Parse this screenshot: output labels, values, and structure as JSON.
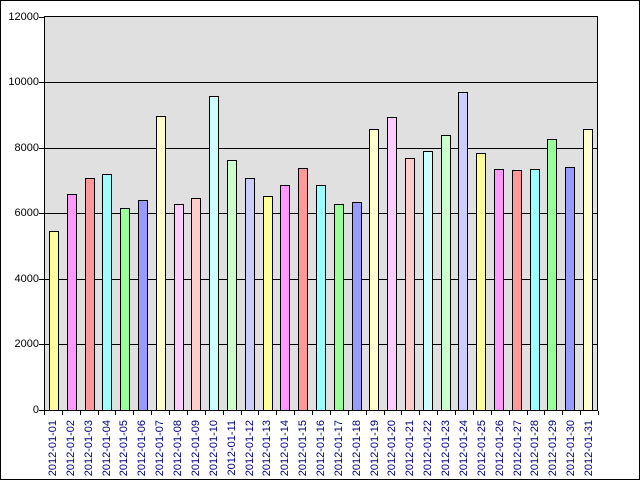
{
  "chart_data": {
    "type": "bar",
    "title": "",
    "xlabel": "",
    "ylabel": "",
    "categories": [
      "2012-01-01",
      "2012-01-02",
      "2012-01-03",
      "2012-01-04",
      "2012-01-05",
      "2012-01-06",
      "2012-01-07",
      "2012-01-08",
      "2012-01-09",
      "2012-01-10",
      "2012-01-11",
      "2012-01-12",
      "2012-01-13",
      "2012-01-14",
      "2012-01-15",
      "2012-01-16",
      "2012-01-17",
      "2012-01-18",
      "2012-01-19",
      "2012-01-20",
      "2012-01-21",
      "2012-01-22",
      "2012-01-23",
      "2012-01-24",
      "2012-01-25",
      "2012-01-26",
      "2012-01-27",
      "2012-01-28",
      "2012-01-29",
      "2012-01-30",
      "2012-01-31"
    ],
    "values": [
      5460,
      6600,
      7070,
      7210,
      6160,
      6420,
      8980,
      6300,
      6480,
      9590,
      7640,
      7080,
      6540,
      6860,
      7390,
      6870,
      6280,
      6360,
      8580,
      8950,
      7680,
      7900,
      8390,
      9700,
      7840,
      7360,
      7330,
      7370,
      8290,
      7420,
      8570
    ],
    "ylim": [
      0,
      12000
    ],
    "yticks": [
      0,
      2000,
      4000,
      6000,
      8000,
      10000,
      12000
    ],
    "grid": "horizontal",
    "legend": "none",
    "bar_colors": [
      "#ffff99",
      "#ff99ff",
      "#ff9999",
      "#99ffff",
      "#99ff99",
      "#9999ff",
      "#ffffcc",
      "#ffccff",
      "#ffcccc",
      "#ccffff",
      "#ccffcc",
      "#ccccff"
    ],
    "plot_background": "#e0e0e0",
    "canvas_background": "#ffffff",
    "axis_color": "#000000",
    "y_label_color": "#000000",
    "x_label_color": "#000080"
  }
}
